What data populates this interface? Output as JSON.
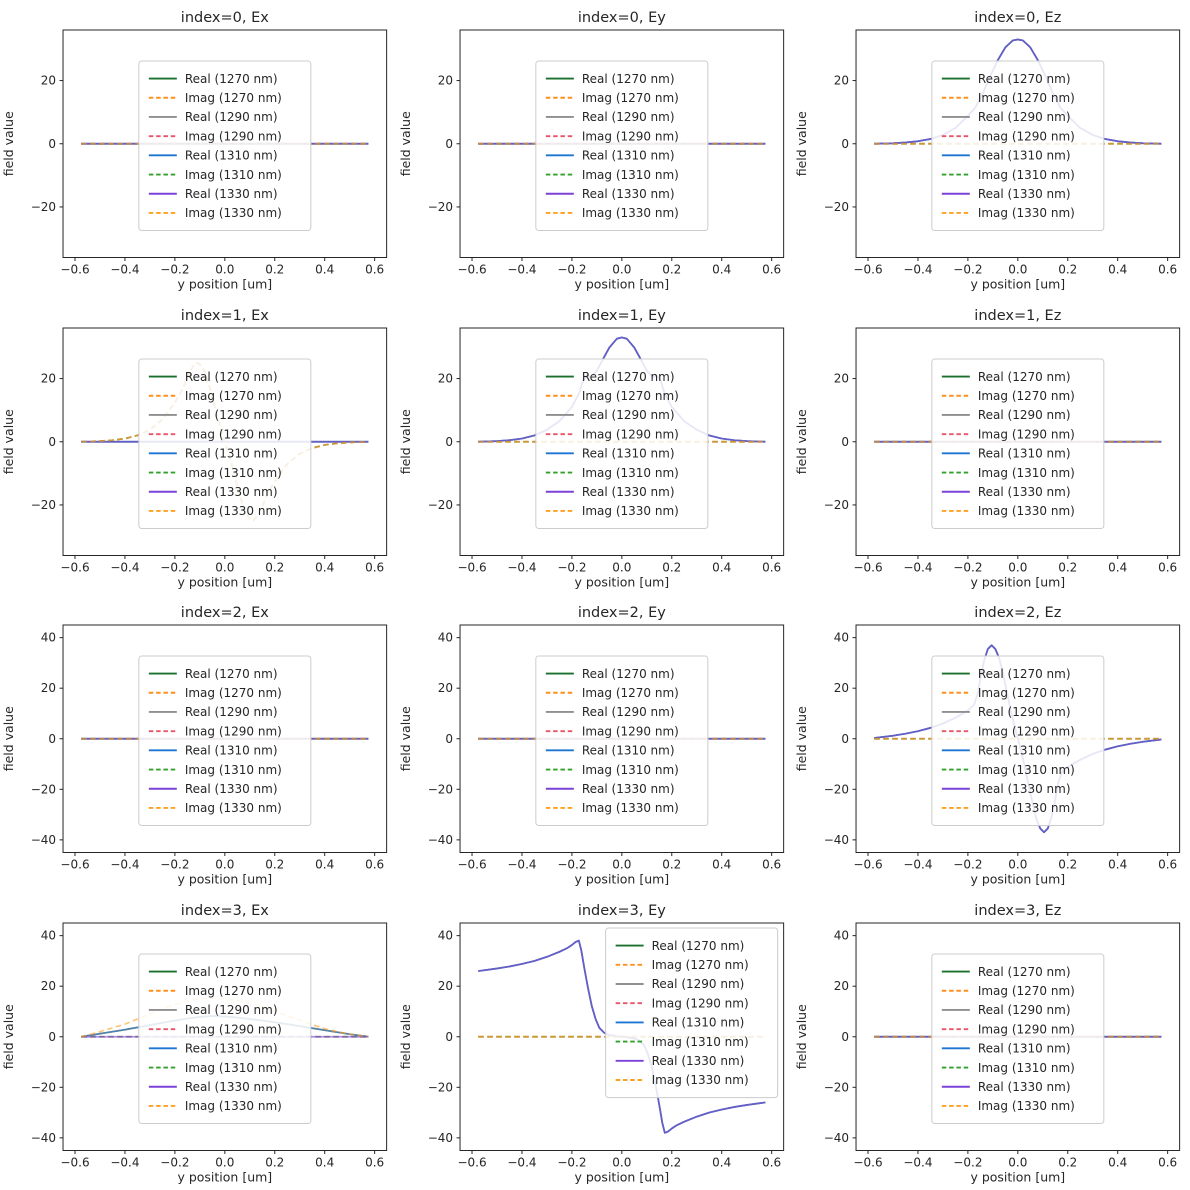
{
  "figure": {
    "kind": "matplotlib-style mode field profiles",
    "rows": 4,
    "cols": 3
  },
  "chart_data": {
    "type": "line",
    "xlabel": "y position [um]",
    "ylabel": "field value",
    "xlim": [
      -0.648,
      0.648
    ],
    "xticks": [
      -0.6,
      -0.4,
      -0.2,
      0.0,
      0.2,
      0.4,
      0.6
    ],
    "grid": false,
    "line_opacity": 0.6,
    "legend_labels": [
      "Real (1270 nm)",
      "Imag (1270 nm)",
      "Real (1290 nm)",
      "Imag (1290 nm)",
      "Real (1310 nm)",
      "Imag (1310 nm)",
      "Real (1330 nm)",
      "Imag (1330 nm)"
    ],
    "series": [
      {
        "key": "real_1270",
        "kind": "real",
        "label": "Real (1270 nm)",
        "color": "#1b702e",
        "dash": false
      },
      {
        "key": "imag_1270",
        "kind": "imag",
        "label": "Imag (1270 nm)",
        "color": "#ff8f1f",
        "dash": true
      },
      {
        "key": "real_1290",
        "kind": "real",
        "label": "Real (1290 nm)",
        "color": "#8f8f8f",
        "dash": false
      },
      {
        "key": "imag_1290",
        "kind": "imag",
        "label": "Imag (1290 nm)",
        "color": "#e8556a",
        "dash": true
      },
      {
        "key": "real_1310",
        "kind": "real",
        "label": "Real (1310 nm)",
        "color": "#1d76d2",
        "dash": false
      },
      {
        "key": "imag_1310",
        "kind": "imag",
        "label": "Imag (1310 nm)",
        "color": "#33a02c",
        "dash": true
      },
      {
        "key": "real_1330",
        "kind": "real",
        "label": "Real (1330 nm)",
        "color": "#7a42d8",
        "dash": false
      },
      {
        "key": "imag_1330",
        "kind": "imag",
        "label": "Imag (1330 nm)",
        "color": "#ffa021",
        "dash": true
      }
    ],
    "profiles": {
      "zero": [
        [
          -0.575,
          0
        ],
        [
          -0.4,
          0
        ],
        [
          -0.2,
          0
        ],
        [
          0,
          0
        ],
        [
          0.2,
          0
        ],
        [
          0.4,
          0
        ],
        [
          0.575,
          0
        ]
      ],
      "bump33": [
        [
          -0.575,
          0
        ],
        [
          -0.5,
          0.15
        ],
        [
          -0.45,
          0.4
        ],
        [
          -0.4,
          0.8
        ],
        [
          -0.35,
          1.5
        ],
        [
          -0.3,
          2.8
        ],
        [
          -0.25,
          5
        ],
        [
          -0.2,
          8.8
        ],
        [
          -0.17,
          11.5
        ],
        [
          -0.14,
          16
        ],
        [
          -0.11,
          21.5
        ],
        [
          -0.08,
          26.5
        ],
        [
          -0.05,
          30.5
        ],
        [
          -0.02,
          32.7
        ],
        [
          0,
          33
        ],
        [
          0.02,
          32.7
        ],
        [
          0.05,
          30.5
        ],
        [
          0.08,
          26.5
        ],
        [
          0.11,
          21.5
        ],
        [
          0.14,
          16
        ],
        [
          0.17,
          11.5
        ],
        [
          0.2,
          8.8
        ],
        [
          0.25,
          5
        ],
        [
          0.3,
          2.8
        ],
        [
          0.35,
          1.5
        ],
        [
          0.4,
          0.8
        ],
        [
          0.45,
          0.4
        ],
        [
          0.5,
          0.15
        ],
        [
          0.575,
          0
        ]
      ],
      "ey1": [
        [
          -0.575,
          0
        ],
        [
          -0.5,
          0.2
        ],
        [
          -0.45,
          0.5
        ],
        [
          -0.4,
          1
        ],
        [
          -0.35,
          2
        ],
        [
          -0.3,
          3.8
        ],
        [
          -0.25,
          6.5
        ],
        [
          -0.2,
          11
        ],
        [
          -0.17,
          15.5
        ],
        [
          -0.155,
          19.5
        ],
        [
          -0.14,
          21
        ],
        [
          -0.125,
          20.3
        ],
        [
          -0.1,
          22.5
        ],
        [
          -0.08,
          25.5
        ],
        [
          -0.05,
          29.8
        ],
        [
          -0.02,
          32.6
        ],
        [
          0,
          33
        ],
        [
          0.02,
          32.6
        ],
        [
          0.05,
          29.8
        ],
        [
          0.08,
          25.5
        ],
        [
          0.1,
          22.5
        ],
        [
          0.125,
          20.3
        ],
        [
          0.14,
          21
        ],
        [
          0.155,
          19.5
        ],
        [
          0.17,
          15.5
        ],
        [
          0.2,
          11
        ],
        [
          0.25,
          6.5
        ],
        [
          0.3,
          3.8
        ],
        [
          0.35,
          2
        ],
        [
          0.4,
          1
        ],
        [
          0.45,
          0.5
        ],
        [
          0.5,
          0.2
        ],
        [
          0.575,
          0
        ]
      ],
      "ez2": [
        [
          -0.575,
          0.3
        ],
        [
          -0.5,
          1.2
        ],
        [
          -0.45,
          2
        ],
        [
          -0.4,
          3
        ],
        [
          -0.35,
          4.3
        ],
        [
          -0.3,
          6
        ],
        [
          -0.25,
          8.3
        ],
        [
          -0.2,
          11.2
        ],
        [
          -0.175,
          13.5
        ],
        [
          -0.16,
          18
        ],
        [
          -0.15,
          24
        ],
        [
          -0.135,
          31
        ],
        [
          -0.12,
          35.5
        ],
        [
          -0.105,
          37
        ],
        [
          -0.09,
          35.5
        ],
        [
          -0.075,
          32
        ],
        [
          -0.06,
          26
        ],
        [
          -0.045,
          19
        ],
        [
          -0.03,
          12
        ],
        [
          -0.015,
          5.5
        ],
        [
          0,
          0
        ],
        [
          0.015,
          -5.5
        ],
        [
          0.03,
          -12
        ],
        [
          0.045,
          -19
        ],
        [
          0.06,
          -26
        ],
        [
          0.075,
          -32
        ],
        [
          0.09,
          -35.5
        ],
        [
          0.105,
          -37
        ],
        [
          0.12,
          -35.5
        ],
        [
          0.135,
          -31
        ],
        [
          0.15,
          -24
        ],
        [
          0.16,
          -18
        ],
        [
          0.175,
          -13.5
        ],
        [
          0.2,
          -11.2
        ],
        [
          0.25,
          -8.3
        ],
        [
          0.3,
          -6
        ],
        [
          0.35,
          -4.3
        ],
        [
          0.4,
          -3
        ],
        [
          0.45,
          -2
        ],
        [
          0.5,
          -1.2
        ],
        [
          0.575,
          -0.3
        ]
      ],
      "ey3": [
        [
          -0.575,
          26
        ],
        [
          -0.5,
          27
        ],
        [
          -0.45,
          27.8
        ],
        [
          -0.4,
          28.8
        ],
        [
          -0.35,
          30
        ],
        [
          -0.3,
          31.6
        ],
        [
          -0.25,
          33.6
        ],
        [
          -0.22,
          35
        ],
        [
          -0.2,
          36.3
        ],
        [
          -0.185,
          37.5
        ],
        [
          -0.172,
          38
        ],
        [
          -0.162,
          34
        ],
        [
          -0.15,
          27
        ],
        [
          -0.135,
          19
        ],
        [
          -0.12,
          12
        ],
        [
          -0.105,
          7
        ],
        [
          -0.09,
          3.5
        ],
        [
          -0.07,
          1.5
        ],
        [
          -0.05,
          0.7
        ],
        [
          -0.02,
          0.15
        ],
        [
          0,
          0
        ],
        [
          0.02,
          -0.15
        ],
        [
          0.05,
          -0.7
        ],
        [
          0.07,
          -1.5
        ],
        [
          0.09,
          -3.5
        ],
        [
          0.105,
          -7
        ],
        [
          0.12,
          -12
        ],
        [
          0.135,
          -19
        ],
        [
          0.15,
          -27
        ],
        [
          0.162,
          -34
        ],
        [
          0.172,
          -38
        ],
        [
          0.185,
          -37.5
        ],
        [
          0.2,
          -36.3
        ],
        [
          0.22,
          -35
        ],
        [
          0.25,
          -33.6
        ],
        [
          0.3,
          -31.6
        ],
        [
          0.35,
          -30
        ],
        [
          0.4,
          -28.8
        ],
        [
          0.45,
          -27.8
        ],
        [
          0.5,
          -27
        ],
        [
          0.575,
          -26
        ]
      ],
      "odd25": [
        [
          -0.575,
          0
        ],
        [
          -0.5,
          0.2
        ],
        [
          -0.45,
          0.5
        ],
        [
          -0.4,
          1
        ],
        [
          -0.35,
          2
        ],
        [
          -0.3,
          3.8
        ],
        [
          -0.25,
          7
        ],
        [
          -0.2,
          12.5
        ],
        [
          -0.17,
          16.5
        ],
        [
          -0.15,
          20.5
        ],
        [
          -0.13,
          23.5
        ],
        [
          -0.115,
          25
        ],
        [
          -0.1,
          24.5
        ],
        [
          -0.08,
          22
        ],
        [
          -0.06,
          17
        ],
        [
          -0.04,
          11
        ],
        [
          -0.02,
          5
        ],
        [
          0,
          0
        ],
        [
          0.02,
          -5
        ],
        [
          0.04,
          -11
        ],
        [
          0.06,
          -17
        ],
        [
          0.08,
          -22
        ],
        [
          0.1,
          -24.5
        ],
        [
          0.115,
          -25
        ],
        [
          0.13,
          -23.5
        ],
        [
          0.15,
          -20.5
        ],
        [
          0.17,
          -16.5
        ],
        [
          0.2,
          -12.5
        ],
        [
          0.25,
          -7
        ],
        [
          0.3,
          -3.8
        ],
        [
          0.35,
          -2
        ],
        [
          0.4,
          -1
        ],
        [
          0.45,
          -0.5
        ],
        [
          0.5,
          -0.2
        ],
        [
          0.575,
          0
        ]
      ],
      "tri8": [
        [
          -0.575,
          0
        ],
        [
          -0.5,
          1.2
        ],
        [
          -0.45,
          2
        ],
        [
          -0.4,
          2.8
        ],
        [
          -0.35,
          3.7
        ],
        [
          -0.3,
          4.6
        ],
        [
          -0.25,
          5.5
        ],
        [
          -0.2,
          6.4
        ],
        [
          -0.15,
          7.2
        ],
        [
          -0.1,
          7.8
        ],
        [
          -0.05,
          8.2
        ],
        [
          0,
          8
        ],
        [
          0.05,
          7.6
        ],
        [
          0.1,
          7
        ],
        [
          0.15,
          6.4
        ],
        [
          0.2,
          5.7
        ],
        [
          0.25,
          5
        ],
        [
          0.3,
          4.2
        ],
        [
          0.35,
          3.4
        ],
        [
          0.4,
          2.6
        ],
        [
          0.45,
          1.8
        ],
        [
          0.5,
          1
        ],
        [
          0.575,
          0
        ]
      ],
      "arc15": [
        [
          -0.575,
          0
        ],
        [
          -0.5,
          2
        ],
        [
          -0.45,
          3.5
        ],
        [
          -0.4,
          5
        ],
        [
          -0.35,
          7
        ],
        [
          -0.3,
          9
        ],
        [
          -0.25,
          11
        ],
        [
          -0.2,
          12.8
        ],
        [
          -0.15,
          14
        ],
        [
          -0.1,
          15
        ],
        [
          -0.05,
          15.3
        ],
        [
          0,
          15
        ],
        [
          0.05,
          14.3
        ],
        [
          0.1,
          13.2
        ],
        [
          0.15,
          11.8
        ],
        [
          0.2,
          10
        ],
        [
          0.25,
          8.2
        ],
        [
          0.3,
          6.5
        ],
        [
          0.35,
          4.8
        ],
        [
          0.4,
          3.2
        ],
        [
          0.45,
          2
        ],
        [
          0.5,
          1
        ],
        [
          0.575,
          0
        ]
      ]
    },
    "subplots": [
      {
        "title": "index=0, Ex",
        "real": "zero",
        "imag": "zero",
        "ylim": [
          -36,
          36
        ],
        "yticks": [
          -20,
          0,
          20
        ],
        "legend": "center"
      },
      {
        "title": "index=0, Ey",
        "real": "zero",
        "imag": "zero",
        "ylim": [
          -36,
          36
        ],
        "yticks": [
          -20,
          0,
          20
        ],
        "legend": "center"
      },
      {
        "title": "index=0, Ez",
        "real": "bump33",
        "imag": "zero",
        "ylim": [
          -36,
          36
        ],
        "yticks": [
          -20,
          0,
          20
        ],
        "legend": "center"
      },
      {
        "title": "index=1, Ex",
        "real": "zero",
        "imag": "odd25",
        "ylim": [
          -36,
          36
        ],
        "yticks": [
          -20,
          0,
          20
        ],
        "legend": "center"
      },
      {
        "title": "index=1, Ey",
        "real": "ey1",
        "imag": "zero",
        "ylim": [
          -36,
          36
        ],
        "yticks": [
          -20,
          0,
          20
        ],
        "legend": "center"
      },
      {
        "title": "index=1, Ez",
        "real": "zero",
        "imag": "zero",
        "ylim": [
          -36,
          36
        ],
        "yticks": [
          -20,
          0,
          20
        ],
        "legend": "center"
      },
      {
        "title": "index=2, Ex",
        "real": "zero",
        "imag": "zero",
        "ylim": [
          -45,
          45
        ],
        "yticks": [
          -40,
          -20,
          0,
          20,
          40
        ],
        "legend": "center"
      },
      {
        "title": "index=2, Ey",
        "real": "zero",
        "imag": "zero",
        "ylim": [
          -45,
          45
        ],
        "yticks": [
          -40,
          -20,
          0,
          20,
          40
        ],
        "legend": "center"
      },
      {
        "title": "index=2, Ez",
        "real": "ez2",
        "imag": "zero",
        "ylim": [
          -45,
          45
        ],
        "yticks": [
          -40,
          -20,
          0,
          20,
          40
        ],
        "legend": "center"
      },
      {
        "title": "index=3, Ex",
        "real": "tri8",
        "imag": "zero",
        "ylim": [
          -45,
          45
        ],
        "yticks": [
          -40,
          -20,
          0,
          20,
          40
        ],
        "legend": "center",
        "overrides": {
          "real_1330": "zero",
          "imag_1270": "tri8",
          "imag_1330": "arc15"
        }
      },
      {
        "title": "index=3, Ey",
        "real": "ey3",
        "imag": "zero",
        "ylim": [
          -45,
          45
        ],
        "yticks": [
          -40,
          -20,
          0,
          20,
          40
        ],
        "legend": "upper-right"
      },
      {
        "title": "index=3, Ez",
        "real": "zero",
        "imag": "zero",
        "ylim": [
          -45,
          45
        ],
        "yticks": [
          -40,
          -20,
          0,
          20,
          40
        ],
        "legend": "center"
      }
    ]
  }
}
